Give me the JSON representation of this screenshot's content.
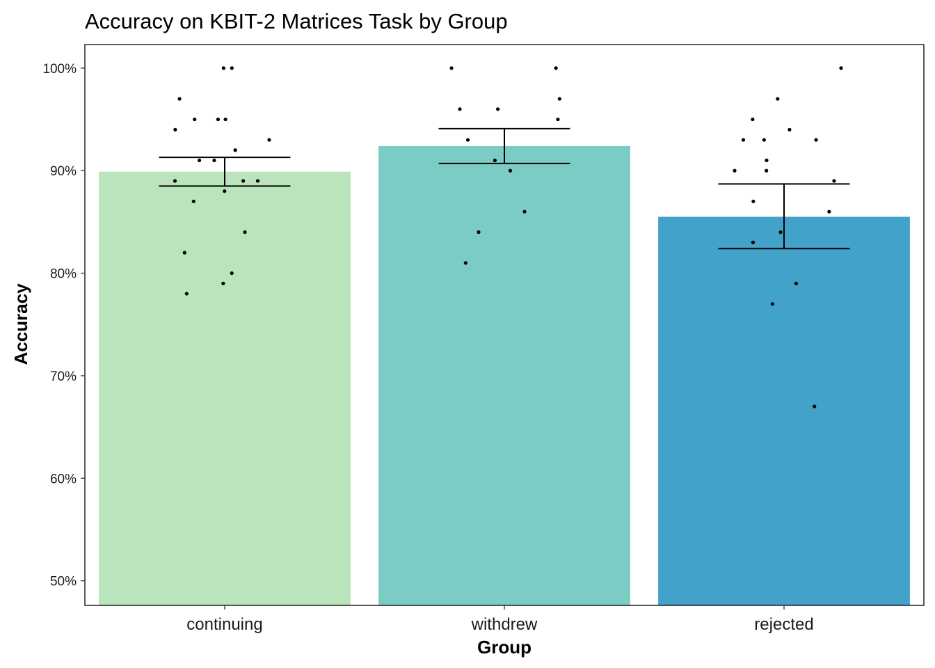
{
  "chart_data": {
    "type": "bar",
    "title": "Accuracy on KBIT-2 Matrices Task by Group",
    "xlabel": "Group",
    "ylabel": "Accuracy",
    "categories": [
      "continuing",
      "withdrew",
      "rejected"
    ],
    "values": [
      0.899,
      0.924,
      0.855
    ],
    "error_bars": [
      {
        "lower": 0.885,
        "upper": 0.913
      },
      {
        "lower": 0.907,
        "upper": 0.941
      },
      {
        "lower": 0.824,
        "upper": 0.887
      }
    ],
    "colors": [
      "#bae4bc",
      "#7bccc4",
      "#43a2ca"
    ],
    "ylim": [
      0.476,
      1.023
    ],
    "y_ticks": [
      0.5,
      0.6,
      0.7,
      0.8,
      0.9,
      1.0
    ],
    "y_tick_labels": [
      "50%",
      "60%",
      "70%",
      "80%",
      "90%",
      "100%"
    ],
    "points": [
      {
        "group": "continuing",
        "values": [
          1.0,
          1.0,
          0.97,
          0.95,
          0.95,
          0.95,
          0.94,
          0.93,
          0.92,
          0.91,
          0.91,
          0.89,
          0.89,
          0.89,
          0.88,
          0.87,
          0.84,
          0.82,
          0.8,
          0.79,
          0.78
        ]
      },
      {
        "group": "withdrew",
        "values": [
          1.0,
          1.0,
          0.97,
          0.96,
          0.96,
          0.95,
          0.93,
          0.91,
          0.9,
          0.86,
          0.84,
          0.81
        ]
      },
      {
        "group": "rejected",
        "values": [
          1.0,
          0.97,
          0.95,
          0.94,
          0.93,
          0.93,
          0.93,
          0.91,
          0.9,
          0.9,
          0.89,
          0.87,
          0.86,
          0.84,
          0.83,
          0.79,
          0.77,
          0.67
        ]
      }
    ],
    "grid": false,
    "legend": "none"
  }
}
